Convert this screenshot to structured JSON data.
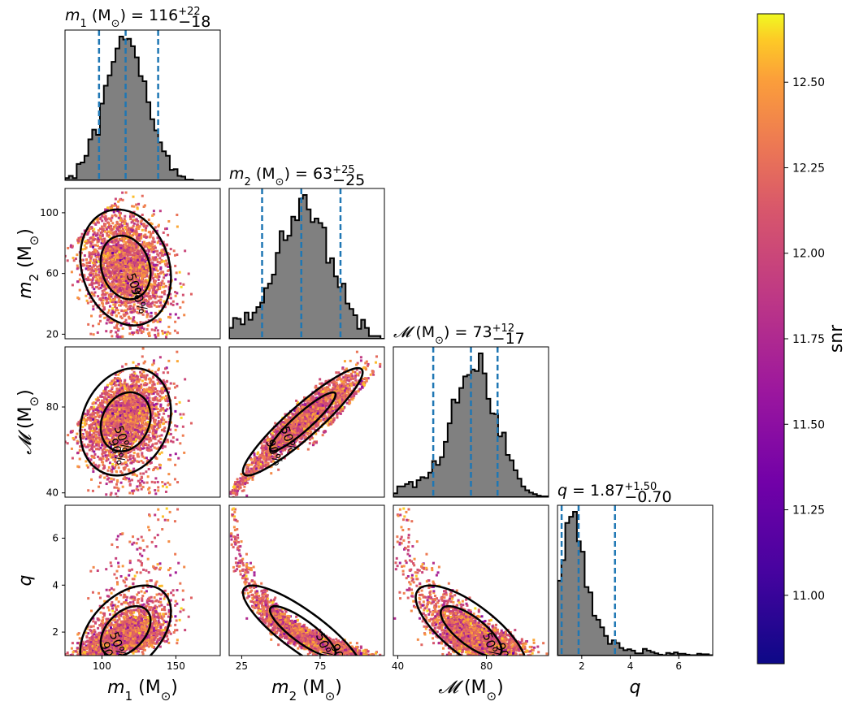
{
  "chart_data": {
    "type": "scatter",
    "subtype": "corner-plot",
    "parameters": [
      {
        "key": "m1",
        "symbol": "m",
        "sub": "1",
        "unit": "M",
        "unit_sub": "⊙",
        "median": 116,
        "minus": 18,
        "plus": 22,
        "range": [
          75,
          180
        ],
        "title_value": "116",
        "title_plus": "+22",
        "title_minus": "−18"
      },
      {
        "key": "m2",
        "symbol": "m",
        "sub": "2",
        "unit": "M",
        "unit_sub": "⊙",
        "median": 63,
        "minus": 25,
        "plus": 25,
        "range": [
          17,
          116
        ],
        "title_value": "63",
        "title_plus": "+25",
        "title_minus": "−25"
      },
      {
        "key": "mc",
        "symbol": "𝓜",
        "sub": "",
        "unit": "M",
        "unit_sub": "⊙",
        "median": 73,
        "minus": 17,
        "plus": 12,
        "range": [
          38,
          108
        ],
        "title_value": "73",
        "title_plus": "+12",
        "title_minus": "−17"
      },
      {
        "key": "q",
        "symbol": "q",
        "sub": "",
        "unit": "",
        "unit_sub": "",
        "median": 1.87,
        "minus": 0.7,
        "plus": 1.5,
        "range": [
          1.0,
          7.4
        ],
        "title_value": "1.87",
        "title_plus": "+1.50",
        "title_minus": "−0.70"
      }
    ],
    "ticks": {
      "m1": [
        "100",
        "150"
      ],
      "m2": [
        "25",
        "75"
      ],
      "mc": [
        "40",
        "80"
      ],
      "q": [
        "2",
        "4",
        "6"
      ],
      "m2_y": [
        "20",
        "60",
        "100"
      ],
      "mc_y": [
        "40",
        "80"
      ],
      "q_y": [
        "2",
        "4",
        "6"
      ]
    },
    "tick_values": {
      "m1": [
        100,
        150
      ],
      "m2": [
        25,
        75
      ],
      "mc": [
        40,
        80
      ],
      "q": [
        2,
        4,
        6
      ],
      "m2_y": [
        20,
        60,
        100
      ],
      "mc_y": [
        40,
        80
      ],
      "q_y": [
        2,
        4,
        6
      ]
    },
    "contour_levels": [
      "50%",
      "90%"
    ],
    "colorbar": {
      "label": "snr",
      "min": 10.8,
      "max": 12.7,
      "ticks": [
        "11.00",
        "11.25",
        "11.50",
        "11.75",
        "12.00",
        "12.25",
        "12.50"
      ],
      "tick_values": [
        11.0,
        11.25,
        11.5,
        11.75,
        12.0,
        12.25,
        12.5
      ],
      "colormap": "plasma"
    },
    "hist_color": "#808080",
    "quantile_line_color": "#1f77b4",
    "grid": false
  }
}
